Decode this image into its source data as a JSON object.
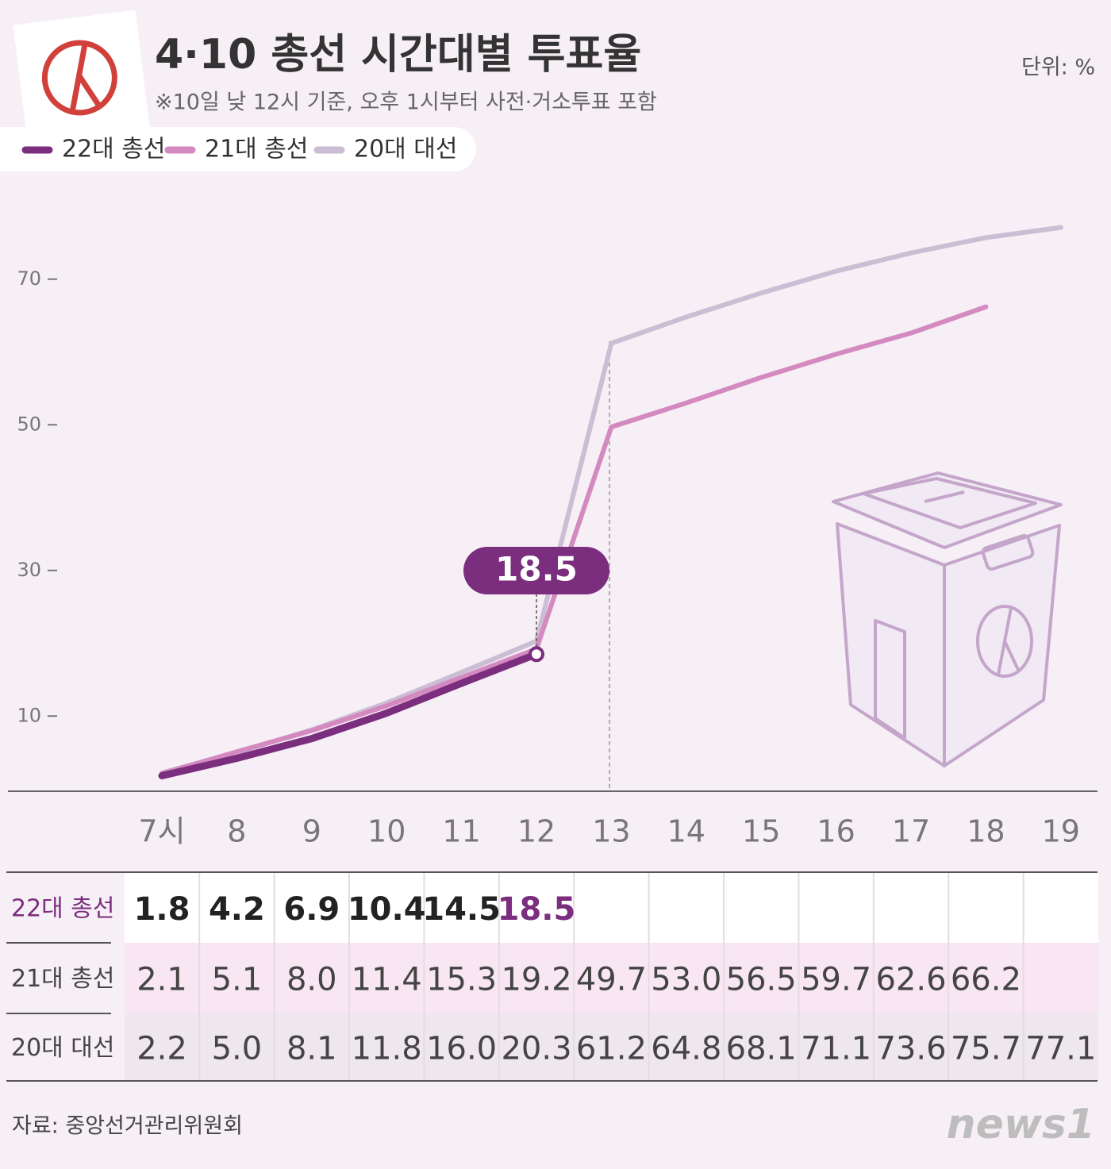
{
  "title": "4·10 총선 시간대별 투표율",
  "subtitle": "※10일 낮 12시 기준, 오후 1시부터 사전·거소투표 포함",
  "unit": "단위: %",
  "source": "자료: 중앙선거관리위원회",
  "logo": "news1",
  "chart_data": {
    "type": "line",
    "categories": [
      "7시",
      "8",
      "9",
      "10",
      "11",
      "12",
      "13",
      "14",
      "15",
      "16",
      "17",
      "18",
      "19"
    ],
    "series": [
      {
        "name": "22대 총선",
        "color": "#7b2d7e",
        "values": [
          1.8,
          4.2,
          6.9,
          10.4,
          14.5,
          18.5,
          null,
          null,
          null,
          null,
          null,
          null,
          null
        ]
      },
      {
        "name": "21대 총선",
        "color": "#d48ac0",
        "values": [
          2.1,
          5.1,
          8.0,
          11.4,
          15.3,
          19.2,
          49.7,
          53.0,
          56.5,
          59.7,
          62.6,
          66.2,
          null
        ],
        "value_labels": [
          "2.1",
          "5.1",
          "8.0",
          "11.4",
          "15.3",
          "19.2",
          "49.7",
          "53.0",
          "56.5",
          "59.7",
          "62.6",
          "66.2",
          null
        ]
      },
      {
        "name": "20대 대선",
        "color": "#cbbdd3",
        "values": [
          2.2,
          5.0,
          8.1,
          11.8,
          16.0,
          20.3,
          61.2,
          64.8,
          68.1,
          71.1,
          73.6,
          75.7,
          77.1
        ],
        "value_labels": [
          "2.2",
          "5.0",
          "8.1",
          "11.8",
          "16.0",
          "20.3",
          "61.2",
          "64.8",
          "68.1",
          "71.1",
          "73.6",
          "75.7",
          "77.1"
        ]
      }
    ],
    "ylim": [
      0,
      80
    ],
    "yticks": [
      10,
      30,
      50,
      70
    ],
    "grid": false,
    "legend": "top-left"
  }
}
